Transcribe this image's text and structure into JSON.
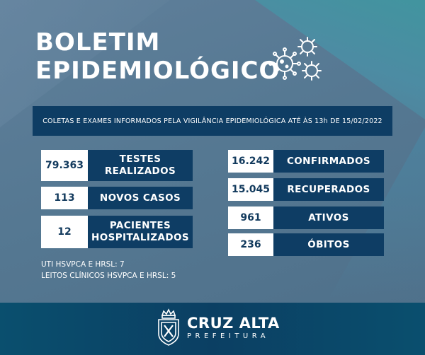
{
  "header": {
    "title_line1": "BOLETIM",
    "title_line2": "EPIDEMIOLÓGICO"
  },
  "banner": {
    "text": "COLETAS E EXAMES INFORMADOS PELA VIGILÂNCIA EPIDEMIOLÓGICA ATÉ ÀS 13h DE 15/02/2022"
  },
  "left_stats": [
    {
      "value": "79.363",
      "label_line1": "TESTES",
      "label_line2": "REALIZADOS"
    },
    {
      "value": "113",
      "label_line1": "NOVOS CASOS"
    },
    {
      "value": "12",
      "label_line1": "PACIENTES",
      "label_line2": "HOSPITALIZADOS"
    }
  ],
  "right_stats": [
    {
      "value": "16.242",
      "label": "CONFIRMADOS"
    },
    {
      "value": "15.045",
      "label": "RECUPERADOS"
    },
    {
      "value": "961",
      "label": "ATIVOS"
    },
    {
      "value": "236",
      "label": "ÓBITOS"
    }
  ],
  "notes": [
    "UTI HSVPCA E HRSL: 7",
    "LEITOS CLÍNICOS HSVPCA E HRSL: 5"
  ],
  "footer": {
    "city": "CRUZ ALTA",
    "subtitle": "PREFEITURA"
  },
  "colors": {
    "navy": "#0e3d64",
    "background": "#567791",
    "white": "#ffffff"
  },
  "icons": [
    "virus-icon",
    "coat-of-arms-icon"
  ]
}
